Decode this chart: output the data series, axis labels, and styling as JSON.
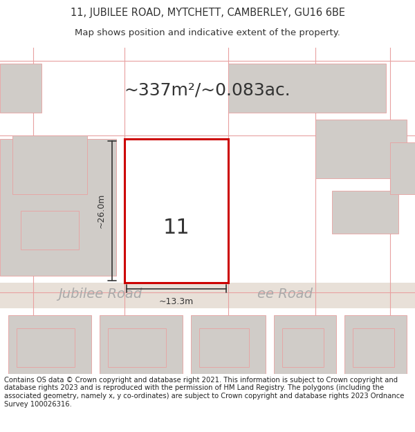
{
  "title_line1": "11, JUBILEE ROAD, MYTCHETT, CAMBERLEY, GU16 6BE",
  "title_line2": "Map shows position and indicative extent of the property.",
  "area_text": "~337m²/~0.083ac.",
  "property_number": "11",
  "dim_height": "~26.0m",
  "dim_width": "~13.3m",
  "road_label": "Jubilee Road",
  "footer_text": "Contains OS data © Crown copyright and database right 2021. This information is subject to Crown copyright and database rights 2023 and is reproduced with the permission of HM Land Registry. The polygons (including the associated geometry, namely x, y co-ordinates) are subject to Crown copyright and database rights 2023 Ordnance Survey 100026316.",
  "bg_color": "#ffffff",
  "map_bg": "#f5f0ee",
  "road_color": "#e8e0d8",
  "plot_line_color": "#cc0000",
  "building_color": "#d0ccc8",
  "grid_line_color": "#e8a0a0",
  "dim_line_color": "#333333",
  "text_color": "#333333",
  "road_text_color": "#aaaaaa"
}
